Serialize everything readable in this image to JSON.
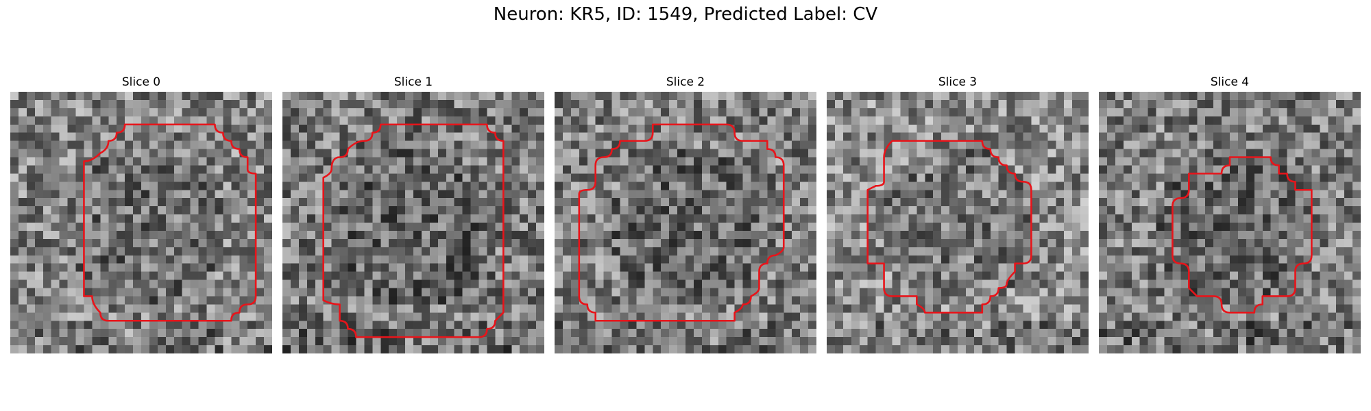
{
  "figure": {
    "title": "Neuron: KR5, ID: 1549, Predicted Label: CV"
  },
  "outline_color": "#e8141a",
  "panels": [
    {
      "title": "Slice 0",
      "mean_intensity": 0.52
    },
    {
      "title": "Slice 1",
      "mean_intensity": 0.48
    },
    {
      "title": "Slice 2",
      "mean_intensity": 0.5
    },
    {
      "title": "Slice 3",
      "mean_intensity": 0.55
    },
    {
      "title": "Slice 4",
      "mean_intensity": 0.5
    }
  ]
}
